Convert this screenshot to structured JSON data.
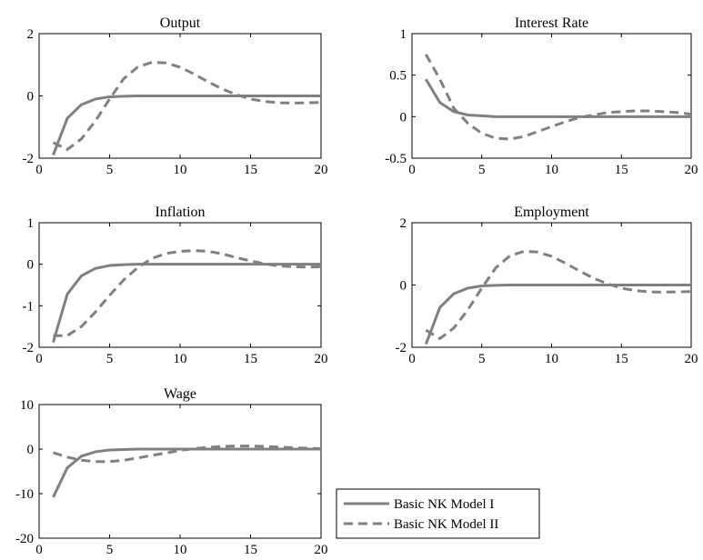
{
  "chart_data": [
    {
      "type": "line",
      "title": "Output",
      "xlim": [
        0,
        20
      ],
      "ylim": [
        -2,
        2
      ],
      "xticks": [
        0,
        5,
        10,
        15,
        20
      ],
      "yticks": [
        -2,
        0,
        2
      ],
      "x": [
        1,
        2,
        3,
        4,
        5,
        6,
        7,
        8,
        9,
        10,
        11,
        12,
        13,
        14,
        15,
        16,
        17,
        18,
        19,
        20
      ],
      "series": [
        {
          "name": "Basic NK Model I",
          "style": "solid",
          "values": [
            -1.9,
            -0.72,
            -0.28,
            -0.1,
            -0.03,
            -0.01,
            0,
            0,
            0,
            0,
            0,
            0,
            0,
            0,
            0,
            0,
            0,
            0,
            0,
            0
          ]
        },
        {
          "name": "Basic NK Model II",
          "style": "dashed",
          "values": [
            -1.5,
            -1.72,
            -1.38,
            -0.8,
            -0.1,
            0.55,
            0.93,
            1.08,
            1.06,
            0.92,
            0.7,
            0.45,
            0.22,
            0.04,
            -0.1,
            -0.18,
            -0.22,
            -0.23,
            -0.22,
            -0.21
          ]
        }
      ]
    },
    {
      "type": "line",
      "title": "Interest Rate",
      "xlim": [
        0,
        20
      ],
      "ylim": [
        -0.5,
        1
      ],
      "xticks": [
        0,
        5,
        10,
        15,
        20
      ],
      "yticks": [
        -0.5,
        0,
        0.5,
        1
      ],
      "x": [
        1,
        2,
        3,
        4,
        5,
        6,
        7,
        8,
        9,
        10,
        11,
        12,
        13,
        14,
        15,
        16,
        17,
        18,
        19,
        20
      ],
      "series": [
        {
          "name": "Basic NK Model I",
          "style": "solid",
          "values": [
            0.45,
            0.17,
            0.06,
            0.02,
            0.01,
            0,
            0,
            0,
            0,
            0,
            0,
            0,
            0,
            0,
            0,
            0,
            0,
            0,
            0,
            0
          ]
        },
        {
          "name": "Basic NK Model II",
          "style": "dashed",
          "values": [
            0.75,
            0.45,
            0.1,
            -0.08,
            -0.2,
            -0.26,
            -0.27,
            -0.24,
            -0.18,
            -0.12,
            -0.06,
            -0.01,
            0.02,
            0.05,
            0.06,
            0.07,
            0.07,
            0.06,
            0.05,
            0.03
          ]
        }
      ]
    },
    {
      "type": "line",
      "title": "Inflation",
      "xlim": [
        0,
        20
      ],
      "ylim": [
        -2,
        1
      ],
      "xticks": [
        0,
        5,
        10,
        15,
        20
      ],
      "yticks": [
        -2,
        -1,
        0,
        1
      ],
      "x": [
        1,
        2,
        3,
        4,
        5,
        6,
        7,
        8,
        9,
        10,
        11,
        12,
        13,
        14,
        15,
        16,
        17,
        18,
        19,
        20
      ],
      "series": [
        {
          "name": "Basic NK Model I",
          "style": "solid",
          "values": [
            -1.88,
            -0.72,
            -0.28,
            -0.1,
            -0.03,
            -0.01,
            0,
            0,
            0,
            0,
            0,
            0,
            0,
            0,
            0,
            0,
            0,
            0,
            0,
            0
          ]
        },
        {
          "name": "Basic NK Model II",
          "style": "dashed",
          "values": [
            -1.72,
            -1.72,
            -1.5,
            -1.15,
            -0.75,
            -0.38,
            -0.08,
            0.14,
            0.26,
            0.31,
            0.33,
            0.31,
            0.25,
            0.16,
            0.08,
            0.01,
            -0.04,
            -0.06,
            -0.07,
            -0.06
          ]
        }
      ]
    },
    {
      "type": "line",
      "title": "Employment",
      "xlim": [
        0,
        20
      ],
      "ylim": [
        -2,
        2
      ],
      "xticks": [
        0,
        5,
        10,
        15,
        20
      ],
      "yticks": [
        -2,
        0,
        2
      ],
      "x": [
        1,
        2,
        3,
        4,
        5,
        6,
        7,
        8,
        9,
        10,
        11,
        12,
        13,
        14,
        15,
        16,
        17,
        18,
        19,
        20
      ],
      "series": [
        {
          "name": "Basic NK Model I",
          "style": "solid",
          "values": [
            -1.9,
            -0.72,
            -0.28,
            -0.1,
            -0.03,
            -0.01,
            0,
            0,
            0,
            0,
            0,
            0,
            0,
            0,
            0,
            0,
            0,
            0,
            0,
            0
          ]
        },
        {
          "name": "Basic NK Model II",
          "style": "dashed",
          "values": [
            -1.45,
            -1.72,
            -1.38,
            -0.8,
            -0.1,
            0.55,
            0.93,
            1.08,
            1.06,
            0.92,
            0.7,
            0.45,
            0.22,
            0.04,
            -0.1,
            -0.18,
            -0.22,
            -0.23,
            -0.22,
            -0.21
          ]
        }
      ]
    },
    {
      "type": "line",
      "title": "Wage",
      "xlim": [
        0,
        20
      ],
      "ylim": [
        -20,
        10
      ],
      "xticks": [
        0,
        5,
        10,
        15,
        20
      ],
      "yticks": [
        -20,
        -10,
        0,
        10
      ],
      "x": [
        1,
        2,
        3,
        4,
        5,
        6,
        7,
        8,
        9,
        10,
        11,
        12,
        13,
        14,
        15,
        16,
        17,
        18,
        19,
        20
      ],
      "series": [
        {
          "name": "Basic NK Model I",
          "style": "solid",
          "values": [
            -10.8,
            -4.2,
            -1.6,
            -0.6,
            -0.2,
            -0.1,
            0,
            0,
            0,
            0,
            0,
            0,
            0,
            0,
            0,
            0,
            0,
            0,
            0,
            0
          ]
        },
        {
          "name": "Basic NK Model II",
          "style": "dashed",
          "values": [
            -0.8,
            -1.8,
            -2.5,
            -2.8,
            -2.8,
            -2.5,
            -2.0,
            -1.4,
            -0.9,
            -0.3,
            0.1,
            0.4,
            0.6,
            0.7,
            0.7,
            0.6,
            0.45,
            0.3,
            0.2,
            0.1
          ]
        }
      ]
    }
  ],
  "legend": {
    "placement": "lower-right",
    "entries": [
      {
        "name": "Basic NK Model I",
        "style": "solid"
      },
      {
        "name": "Basic NK Model II",
        "style": "dashed"
      }
    ]
  },
  "colors": {
    "line": "#808080",
    "axis": "#000000"
  }
}
